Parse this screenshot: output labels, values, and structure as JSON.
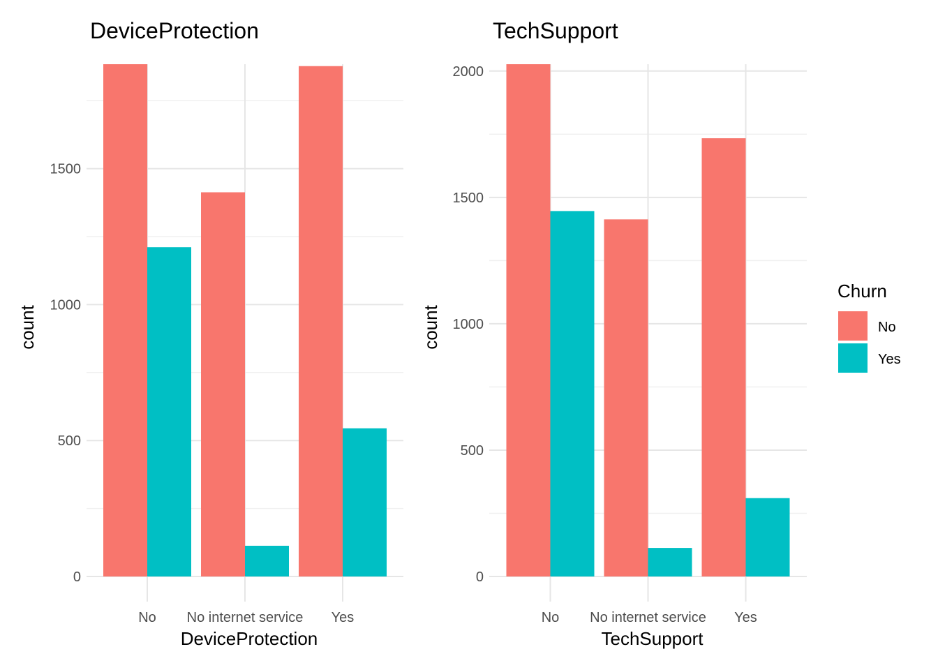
{
  "chart_data": [
    {
      "type": "bar",
      "title": "DeviceProtection",
      "xlabel": "DeviceProtection",
      "ylabel": "count",
      "categories": [
        "No",
        "No internet service",
        "Yes"
      ],
      "series": [
        {
          "name": "No",
          "values": [
            1884,
            1413,
            1877
          ],
          "color": "#F8766D"
        },
        {
          "name": "Yes",
          "values": [
            1211,
            113,
            545
          ],
          "color": "#00BFC4"
        }
      ],
      "ylim": [
        0,
        1884
      ],
      "yticks": [
        0,
        500,
        1000,
        1500
      ],
      "grid": true
    },
    {
      "type": "bar",
      "title": "TechSupport",
      "xlabel": "TechSupport",
      "ylabel": "count",
      "categories": [
        "No",
        "No internet service",
        "Yes"
      ],
      "series": [
        {
          "name": "No",
          "values": [
            2027,
            1413,
            1734
          ],
          "color": "#F8766D"
        },
        {
          "name": "Yes",
          "values": [
            1446,
            113,
            310
          ],
          "color": "#00BFC4"
        }
      ],
      "ylim": [
        0,
        2027
      ],
      "yticks": [
        0,
        500,
        1000,
        1500,
        2000
      ],
      "grid": true
    }
  ],
  "legend": {
    "title": "Churn",
    "placement": "right",
    "items": [
      {
        "label": "No",
        "color": "#F8766D"
      },
      {
        "label": "Yes",
        "color": "#00BFC4"
      }
    ]
  }
}
